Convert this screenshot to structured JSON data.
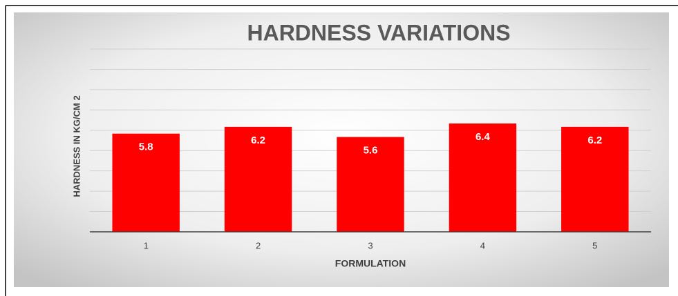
{
  "chart_data": {
    "type": "bar",
    "title": "HARDNESS VARIATIONS",
    "x_label": "FORMULATION",
    "y_label": "HARDNESS IN KG/CM 2",
    "categories": [
      "1",
      "2",
      "3",
      "4",
      "5"
    ],
    "values": [
      5.8,
      6.2,
      5.6,
      6.4,
      6.2
    ],
    "color": "#ff0000",
    "ylim": [
      0,
      10.8
    ],
    "yticks": [
      0,
      1.2,
      2.4,
      3.6,
      4.8,
      6,
      7.2,
      8.4,
      9.6,
      10.8
    ],
    "grid": true
  }
}
